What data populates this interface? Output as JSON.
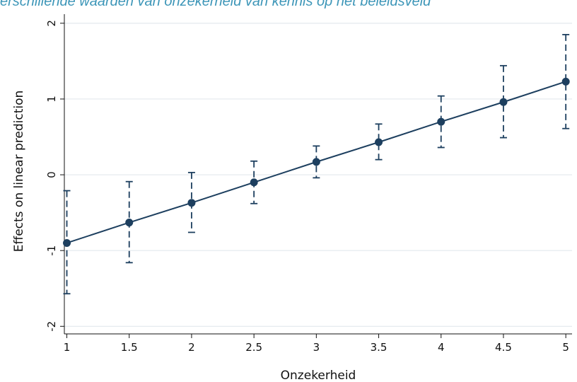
{
  "title": "verschillende waarden van onzekerheid van kennis op het beleidsveld",
  "colors": {
    "title": "#3d96b8",
    "series": "#1d3f5f",
    "grid": "#e3e8ed",
    "axis": "#111111"
  },
  "chart_data": {
    "type": "line",
    "xlabel": "Onzekerheid",
    "ylabel": "Effects on linear prediction",
    "xlim": [
      0.98,
      5.05
    ],
    "ylim": [
      -2.1,
      2.12
    ],
    "x_ticks": [
      1,
      1.5,
      2,
      2.5,
      3,
      3.5,
      4,
      4.5,
      5
    ],
    "x_tick_labels": [
      "1",
      "1.5",
      "2",
      "2.5",
      "3",
      "3.5",
      "4",
      "4.5",
      "5"
    ],
    "y_ticks": [
      -2,
      -1,
      0,
      1,
      2
    ],
    "y_tick_labels": [
      "-2",
      "-1",
      "0",
      "1",
      "2"
    ],
    "grid": "horizontal",
    "series": [
      {
        "x": [
          1,
          1.5,
          2,
          2.5,
          3,
          3.5,
          4,
          4.5,
          5
        ],
        "y": [
          -0.9,
          -0.63,
          -0.37,
          -0.1,
          0.17,
          0.43,
          0.7,
          0.96,
          1.23
        ],
        "ci_low": [
          -1.57,
          -1.16,
          -0.76,
          -0.38,
          -0.04,
          0.2,
          0.36,
          0.49,
          0.61
        ],
        "ci_high": [
          -0.21,
          -0.09,
          0.03,
          0.18,
          0.38,
          0.67,
          1.04,
          1.44,
          1.85
        ]
      }
    ]
  }
}
